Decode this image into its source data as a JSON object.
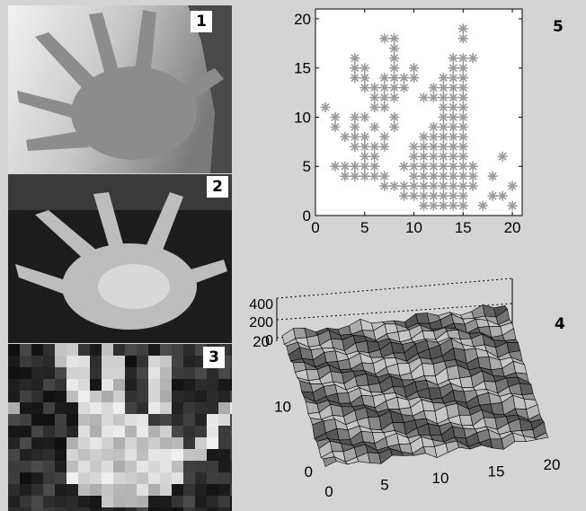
{
  "panels": [
    {
      "label": "1"
    },
    {
      "label": "2"
    },
    {
      "label": "3"
    }
  ],
  "scatter_label": "5",
  "surface_label": "4",
  "chart_data": [
    {
      "type": "scatter",
      "marker": "asterisk",
      "color": "#9a9a9a",
      "xlim": [
        0,
        21
      ],
      "ylim": [
        0,
        21
      ],
      "xticks": [
        "0",
        "5",
        "10",
        "15",
        "20"
      ],
      "yticks": [
        "0",
        "5",
        "10",
        "15",
        "20"
      ],
      "grid": false,
      "points": [
        [
          15,
          19
        ],
        [
          15,
          18
        ],
        [
          7,
          18
        ],
        [
          8,
          18
        ],
        [
          8,
          17
        ],
        [
          4,
          16
        ],
        [
          8,
          16
        ],
        [
          14,
          16
        ],
        [
          15,
          16
        ],
        [
          16,
          16
        ],
        [
          4,
          15
        ],
        [
          5,
          15
        ],
        [
          8,
          15
        ],
        [
          10,
          15
        ],
        [
          14,
          15
        ],
        [
          15,
          15
        ],
        [
          4,
          14
        ],
        [
          5,
          14
        ],
        [
          7,
          14
        ],
        [
          8,
          14
        ],
        [
          9,
          14
        ],
        [
          10,
          14
        ],
        [
          13,
          14
        ],
        [
          14,
          14
        ],
        [
          15,
          14
        ],
        [
          5,
          13
        ],
        [
          6,
          13
        ],
        [
          7,
          13
        ],
        [
          8,
          13
        ],
        [
          9,
          13
        ],
        [
          12,
          13
        ],
        [
          13,
          13
        ],
        [
          14,
          13
        ],
        [
          15,
          13
        ],
        [
          6,
          12
        ],
        [
          7,
          12
        ],
        [
          8,
          12
        ],
        [
          11,
          12
        ],
        [
          12,
          12
        ],
        [
          13,
          12
        ],
        [
          14,
          12
        ],
        [
          15,
          12
        ],
        [
          1,
          11
        ],
        [
          6,
          11
        ],
        [
          7,
          11
        ],
        [
          13,
          11
        ],
        [
          14,
          11
        ],
        [
          15,
          11
        ],
        [
          2,
          10
        ],
        [
          4,
          10
        ],
        [
          5,
          10
        ],
        [
          8,
          10
        ],
        [
          13,
          10
        ],
        [
          14,
          10
        ],
        [
          15,
          10
        ],
        [
          2,
          9
        ],
        [
          4,
          9
        ],
        [
          6,
          9
        ],
        [
          8,
          9
        ],
        [
          12,
          9
        ],
        [
          13,
          9
        ],
        [
          14,
          9
        ],
        [
          15,
          9
        ],
        [
          3,
          8
        ],
        [
          4,
          8
        ],
        [
          5,
          8
        ],
        [
          7,
          8
        ],
        [
          11,
          8
        ],
        [
          12,
          8
        ],
        [
          13,
          8
        ],
        [
          14,
          8
        ],
        [
          15,
          8
        ],
        [
          4,
          7
        ],
        [
          5,
          7
        ],
        [
          6,
          7
        ],
        [
          7,
          7
        ],
        [
          10,
          7
        ],
        [
          11,
          7
        ],
        [
          12,
          7
        ],
        [
          13,
          7
        ],
        [
          14,
          7
        ],
        [
          15,
          7
        ],
        [
          5,
          6
        ],
        [
          6,
          6
        ],
        [
          10,
          6
        ],
        [
          11,
          6
        ],
        [
          12,
          6
        ],
        [
          13,
          6
        ],
        [
          14,
          6
        ],
        [
          15,
          6
        ],
        [
          19,
          6
        ],
        [
          2,
          5
        ],
        [
          3,
          5
        ],
        [
          4,
          5
        ],
        [
          5,
          5
        ],
        [
          6,
          5
        ],
        [
          9,
          5
        ],
        [
          10,
          5
        ],
        [
          11,
          5
        ],
        [
          12,
          5
        ],
        [
          13,
          5
        ],
        [
          14,
          5
        ],
        [
          15,
          5
        ],
        [
          16,
          5
        ],
        [
          3,
          4
        ],
        [
          4,
          4
        ],
        [
          5,
          4
        ],
        [
          6,
          4
        ],
        [
          7,
          4
        ],
        [
          10,
          4
        ],
        [
          11,
          4
        ],
        [
          12,
          4
        ],
        [
          13,
          4
        ],
        [
          14,
          4
        ],
        [
          15,
          4
        ],
        [
          16,
          4
        ],
        [
          18,
          4
        ],
        [
          7,
          3
        ],
        [
          8,
          3
        ],
        [
          9,
          3
        ],
        [
          10,
          3
        ],
        [
          11,
          3
        ],
        [
          12,
          3
        ],
        [
          13,
          3
        ],
        [
          14,
          3
        ],
        [
          15,
          3
        ],
        [
          16,
          3
        ],
        [
          20,
          3
        ],
        [
          9,
          2
        ],
        [
          10,
          2
        ],
        [
          11,
          2
        ],
        [
          12,
          2
        ],
        [
          13,
          2
        ],
        [
          14,
          2
        ],
        [
          15,
          2
        ],
        [
          18,
          2
        ],
        [
          19,
          2
        ],
        [
          11,
          1
        ],
        [
          12,
          1
        ],
        [
          13,
          1
        ],
        [
          14,
          1
        ],
        [
          15,
          1
        ],
        [
          17,
          1
        ],
        [
          20,
          1
        ]
      ]
    },
    {
      "type": "surface",
      "xticks": [
        "0",
        "5",
        "10",
        "15",
        "20"
      ],
      "yticks": [
        "0",
        "10",
        "20"
      ],
      "zticks": [
        "0",
        "200",
        "400"
      ],
      "grid": true
    }
  ]
}
